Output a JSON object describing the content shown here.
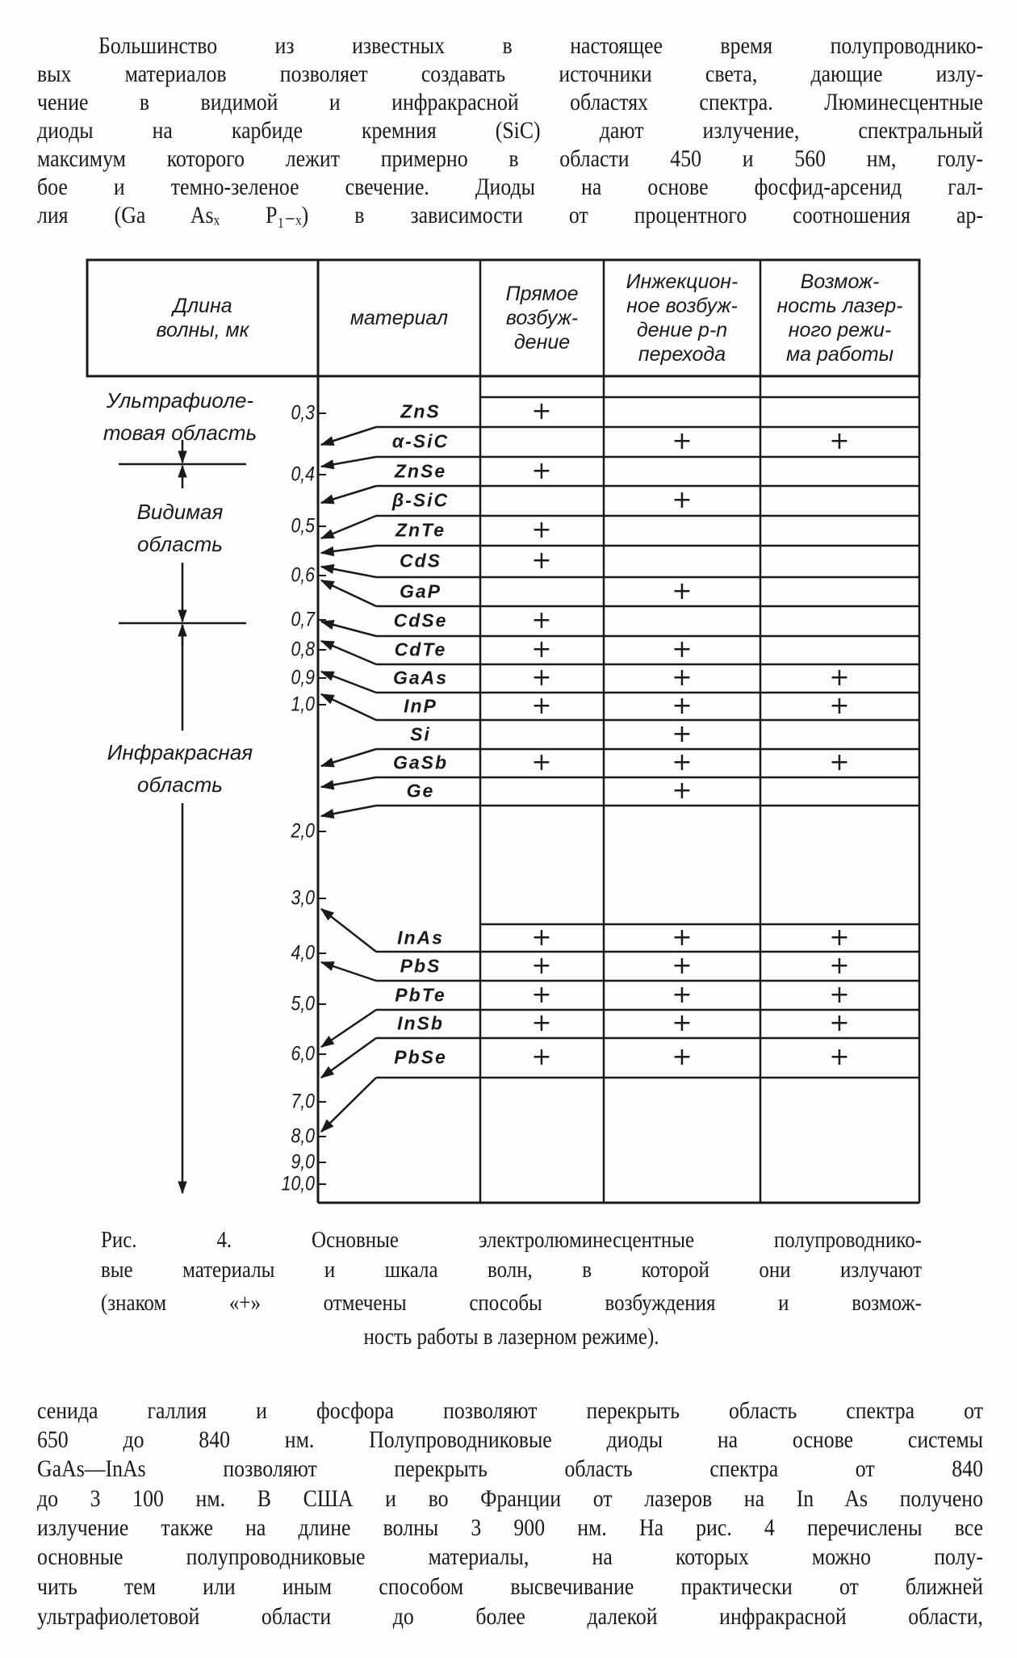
{
  "top_paragraph": [
    "Большинство из известных в настоящее время полупроводнико-",
    "вых материалов позволяет создавать источники света, дающие излу-",
    "чение в видимой и инфракрасной областях спектра. Люминесцентные",
    "диоды на карбиде кремния (SiC) дают излучение, спектральный",
    "максимум которого лежит примерно в области 450 и 560 нм, голу-",
    "бое и темно-зеленое свечение. Диоды на основе фосфид-арсенид гал-",
    "лия (Ga Asₓ P₁₋ₓ) в зависимости от процентного соотношения ар-"
  ],
  "table": {
    "headers": [
      [
        "Длина",
        "волны, мк"
      ],
      [
        "материал"
      ],
      [
        "Прямое",
        "возбуж-",
        "дение"
      ],
      [
        "Инжекцион-",
        "ное возбуж-",
        "дение p-n",
        "перехода"
      ],
      [
        "Возмож-",
        "ность лазер-",
        "ного режи-",
        "ма работы"
      ]
    ],
    "regions": [
      [
        "Ультрафиоле-",
        "товая область"
      ],
      [
        "Видимая",
        "область"
      ],
      [
        "Инфракрасная",
        "область"
      ]
    ],
    "scale_ticks": [
      "0,3",
      "0,4",
      "0,5",
      "0,6",
      "0,7",
      "0,8",
      "0,9",
      "1,0",
      "2,0",
      "3,0",
      "4,0",
      "5,0",
      "6,0",
      "7,0",
      "8,0",
      "9,0",
      "10,0"
    ],
    "mark": "+",
    "rows": [
      {
        "material": "ZnS",
        "direct": true,
        "injection": false,
        "laser": false
      },
      {
        "material": "α-SiC",
        "direct": false,
        "injection": true,
        "laser": true
      },
      {
        "material": "ZnSe",
        "direct": true,
        "injection": false,
        "laser": false
      },
      {
        "material": "β-SiC",
        "direct": false,
        "injection": true,
        "laser": false
      },
      {
        "material": "ZnTe",
        "direct": true,
        "injection": false,
        "laser": false
      },
      {
        "material": "CdS",
        "direct": true,
        "injection": false,
        "laser": false
      },
      {
        "material": "GaP",
        "direct": false,
        "injection": true,
        "laser": false
      },
      {
        "material": "CdSe",
        "direct": true,
        "injection": false,
        "laser": false
      },
      {
        "material": "CdTe",
        "direct": true,
        "injection": true,
        "laser": false
      },
      {
        "material": "GaAs",
        "direct": true,
        "injection": true,
        "laser": true
      },
      {
        "material": "InP",
        "direct": true,
        "injection": true,
        "laser": true
      },
      {
        "material": "Si",
        "direct": false,
        "injection": true,
        "laser": false
      },
      {
        "material": "GaSb",
        "direct": true,
        "injection": true,
        "laser": true
      },
      {
        "material": "Ge",
        "direct": false,
        "injection": true,
        "laser": false
      },
      {
        "material": "InAs",
        "direct": true,
        "injection": true,
        "laser": true
      },
      {
        "material": "PbS",
        "direct": true,
        "injection": true,
        "laser": true
      },
      {
        "material": "PbTe",
        "direct": true,
        "injection": true,
        "laser": true
      },
      {
        "material": "InSb",
        "direct": true,
        "injection": true,
        "laser": true
      },
      {
        "material": "PbSe",
        "direct": true,
        "injection": true,
        "laser": true
      }
    ]
  },
  "caption": [
    "Рис. 4. Основные электролюминесцентные полупроводнико-",
    "вые материалы и шкала волн, в которой они излучают",
    "(знаком «+» отмечены способы возбуждения и возмож-",
    "ность работы в лазерном режиме)."
  ],
  "bottom_paragraph": [
    "сенида галлия и фосфора позволяют перекрыть область спектра от",
    "650 до 840 нм. Полупроводниковые диоды на основе системы",
    "GaAs—InAs позволяют перекрыть область спектра от 840",
    "до 3 100 нм. В США и во Франции от лазеров на In As получено",
    "излучение также на длине волны 3 900 нм. На рис. 4 перечислены все",
    "основные полупроводниковые материалы, на которых можно полу-",
    "чить тем или иным способом высвечивание практически от ближней",
    "ультрафиолетовой области до более далекой инфракрасной области,"
  ]
}
